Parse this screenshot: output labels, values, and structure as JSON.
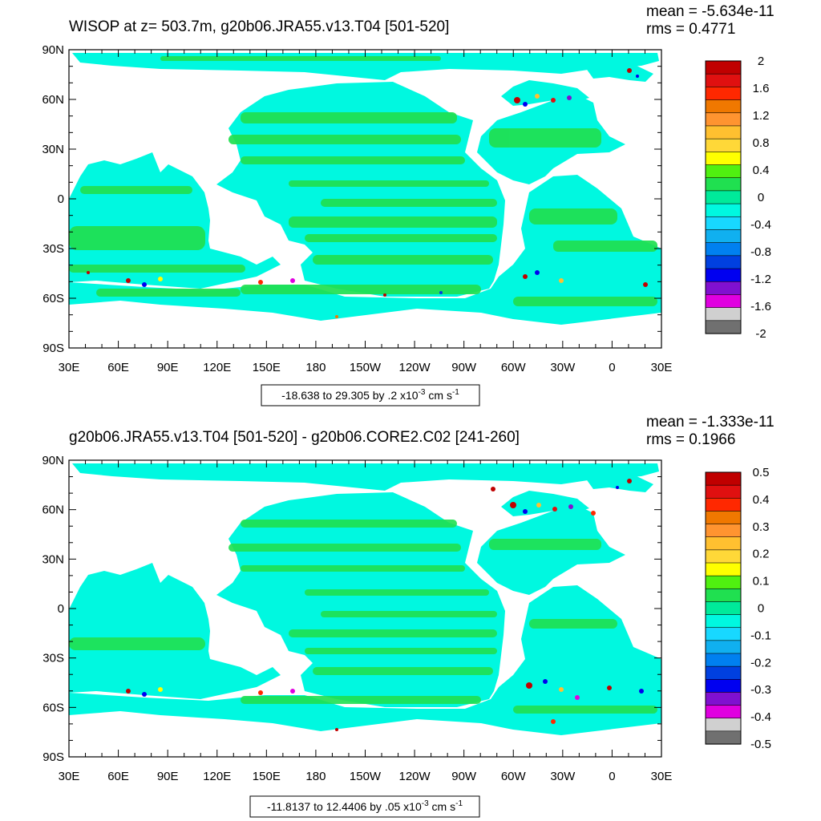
{
  "chart_data": [
    {
      "type": "heatmap",
      "title": "WISOP at z= 503.7m, g20b06.JRA55.v13.T04 [501-520]",
      "stats": {
        "mean": "mean = -5.634e-11",
        "rms": "rms = 0.4771"
      },
      "x_tick_labels": [
        "30E",
        "60E",
        "90E",
        "120E",
        "150E",
        "180",
        "150W",
        "120W",
        "90W",
        "60W",
        "30W",
        "0",
        "30E"
      ],
      "y_tick_labels": [
        "90N",
        "60N",
        "30N",
        "0",
        "30S",
        "60S",
        "90S"
      ],
      "lon_range": [
        30,
        390
      ],
      "lat_range": [
        -90,
        90
      ],
      "range_note": {
        "prefix": "-18.638 to 29.305 by .2 x10",
        "exp": "-3",
        "unit": " cm s",
        "unit_exp": "-1"
      },
      "colorbar": {
        "labels": [
          "2",
          "1.6",
          "1.2",
          "0.8",
          "0.4",
          "0",
          "-0.4",
          "-0.8",
          "-1.2",
          "-1.6",
          "-2"
        ],
        "levels_top_to_bottom": [
          2,
          1.6,
          1.2,
          0.8,
          0.4,
          0,
          -0.4,
          -0.8,
          -1.2,
          -1.6,
          -2
        ],
        "colors_top_to_bottom": [
          "#c00000",
          "#e01010",
          "#ff2800",
          "#f07800",
          "#ff9430",
          "#ffc030",
          "#ffd838",
          "#ffff00",
          "#50f010",
          "#20e050",
          "#00ea9a",
          "#00f8e0",
          "#18d8ff",
          "#10b0f0",
          "#0080f0",
          "#0040e0",
          "#0000f0",
          "#8010d0",
          "#e000e0",
          "#d0d0d0",
          "#707070"
        ]
      }
    },
    {
      "type": "heatmap",
      "title": "g20b06.JRA55.v13.T04 [501-520] - g20b06.CORE2.C02 [241-260]",
      "stats": {
        "mean": "mean = -1.333e-11",
        "rms": "rms = 0.1966"
      },
      "x_tick_labels": [
        "30E",
        "60E",
        "90E",
        "120E",
        "150E",
        "180",
        "150W",
        "120W",
        "90W",
        "60W",
        "30W",
        "0",
        "30E"
      ],
      "y_tick_labels": [
        "90N",
        "60N",
        "30N",
        "0",
        "30S",
        "60S",
        "90S"
      ],
      "lon_range": [
        30,
        390
      ],
      "lat_range": [
        -90,
        90
      ],
      "range_note": {
        "prefix": "-11.8137 to 12.4406 by .05 x10",
        "exp": "-3",
        "unit": " cm s",
        "unit_exp": "-1"
      },
      "colorbar": {
        "labels": [
          "0.5",
          "0.4",
          "0.3",
          "0.2",
          "0.1",
          "0",
          "-0.1",
          "-0.2",
          "-0.3",
          "-0.4",
          "-0.5"
        ],
        "levels_top_to_bottom": [
          0.5,
          0.4,
          0.3,
          0.2,
          0.1,
          0,
          -0.1,
          -0.2,
          -0.3,
          -0.4,
          -0.5
        ],
        "colors_top_to_bottom": [
          "#c00000",
          "#e01010",
          "#ff2800",
          "#f07800",
          "#ff9430",
          "#ffc030",
          "#ffd838",
          "#ffff00",
          "#50f010",
          "#20e050",
          "#00ea9a",
          "#00f8e0",
          "#18d8ff",
          "#10b0f0",
          "#0080f0",
          "#0040e0",
          "#0000f0",
          "#8010d0",
          "#e000e0",
          "#d0d0d0",
          "#707070"
        ]
      }
    }
  ]
}
